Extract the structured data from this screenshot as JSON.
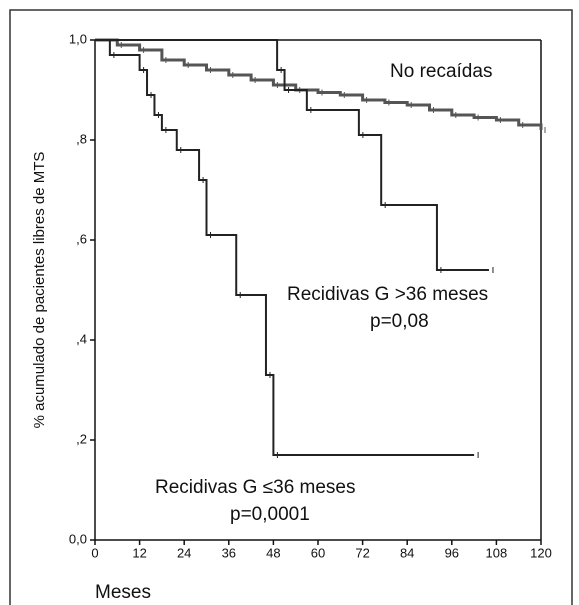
{
  "chart_data": {
    "type": "step",
    "ylabel": "% acumulado de pacientes libres de MTS",
    "xlabel": "Meses",
    "xlim": [
      0,
      120
    ],
    "xticks": [
      0,
      12,
      24,
      36,
      48,
      60,
      72,
      84,
      96,
      108,
      120
    ],
    "ylim": [
      0,
      1
    ],
    "yticks": [
      {
        "value": 0,
        "label": "0,0"
      },
      {
        "value": 0.2,
        "label": ",2"
      },
      {
        "value": 0.4,
        "label": ",4"
      },
      {
        "value": 0.6,
        "label": ",6"
      },
      {
        "value": 0.8,
        "label": ",8"
      },
      {
        "value": 1,
        "label": "1,0"
      }
    ],
    "series": [
      {
        "name": "No recaídas",
        "color": "#555555",
        "x": [
          0,
          6,
          12,
          18,
          24,
          30,
          36,
          42,
          48,
          54,
          60,
          66,
          72,
          78,
          84,
          90,
          96,
          102,
          108,
          114,
          120
        ],
        "values": [
          1.0,
          0.99,
          0.98,
          0.96,
          0.95,
          0.94,
          0.93,
          0.92,
          0.91,
          0.9,
          0.895,
          0.89,
          0.88,
          0.875,
          0.87,
          0.86,
          0.85,
          0.845,
          0.84,
          0.83,
          0.82
        ]
      },
      {
        "name": "Recidivas G >36 meses",
        "color": "#222222",
        "x": [
          0,
          49,
          51,
          57,
          71,
          77,
          92,
          106
        ],
        "values": [
          1.0,
          0.94,
          0.9,
          0.86,
          0.81,
          0.67,
          0.54,
          0.54
        ]
      },
      {
        "name": "Recidivas G ≤36 meses",
        "color": "#222222",
        "x": [
          0,
          4,
          12,
          14,
          16,
          18,
          22,
          28,
          30,
          38,
          46,
          48,
          102
        ],
        "values": [
          1.0,
          0.97,
          0.94,
          0.89,
          0.85,
          0.82,
          0.78,
          0.72,
          0.61,
          0.49,
          0.33,
          0.17,
          0.17
        ]
      }
    ],
    "annotations": [
      "p=0,08",
      "p=0,0001"
    ]
  }
}
